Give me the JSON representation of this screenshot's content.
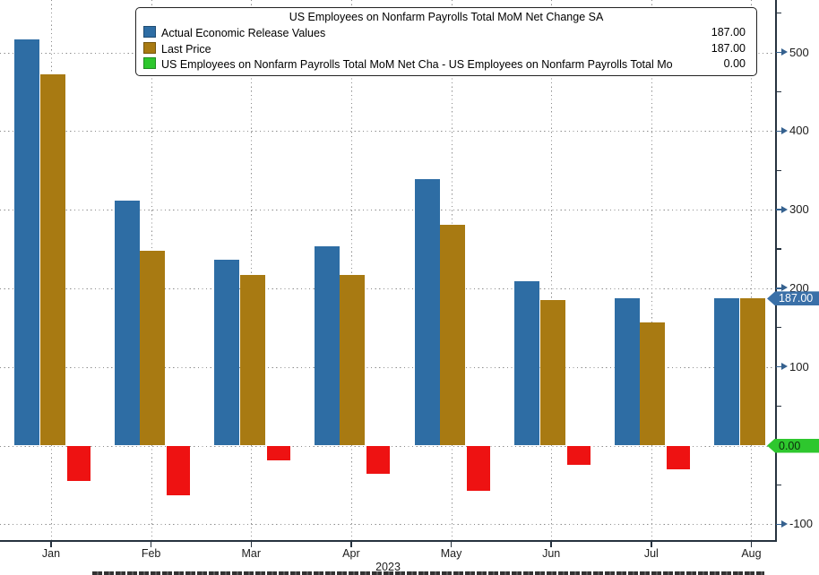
{
  "chart_data": {
    "type": "bar",
    "title": "US Employees on Nonfarm Payrolls Total MoM Net Change SA",
    "categories": [
      "Jan",
      "Feb",
      "Mar",
      "Apr",
      "May",
      "Jun",
      "Jul",
      "Aug"
    ],
    "x_axis_year": "2023",
    "xlabel": "2023",
    "ylabel": "",
    "ylim": [
      -121,
      566
    ],
    "grid": true,
    "legend_position": "top",
    "yticks_major": [
      500,
      400,
      300,
      200,
      100,
      0,
      -100
    ],
    "yticks_minor": [
      550,
      450,
      350,
      250,
      150,
      50,
      -50
    ],
    "series": [
      {
        "name": "Actual Economic Release Values",
        "color": "#2e6da4",
        "legend_value": "187.00",
        "values": [
          517,
          311,
          236,
          253,
          339,
          209,
          187,
          187
        ]
      },
      {
        "name": "Last Price",
        "color": "#a87a12",
        "legend_value": "187.00",
        "values": [
          472,
          248,
          217,
          217,
          281,
          185,
          157,
          187
        ]
      },
      {
        "name": "US Employees on Nonfarm Payrolls Total MoM Net Cha - US Employees on Nonfarm Payrolls Total Mo",
        "color": "#2ec72e",
        "bar_color": "#ee1212",
        "legend_value": "0.00",
        "values": [
          -45,
          -63,
          -19,
          -36,
          -58,
          -24,
          -30,
          0
        ]
      }
    ],
    "markers": [
      {
        "label": "187.00",
        "value": 187,
        "bg": "#3a70a8",
        "text_color": "#ffffff"
      },
      {
        "label": "0.00",
        "value": 0,
        "bg": "#2ec72e",
        "text_color": "#0b2b0b"
      }
    ]
  }
}
